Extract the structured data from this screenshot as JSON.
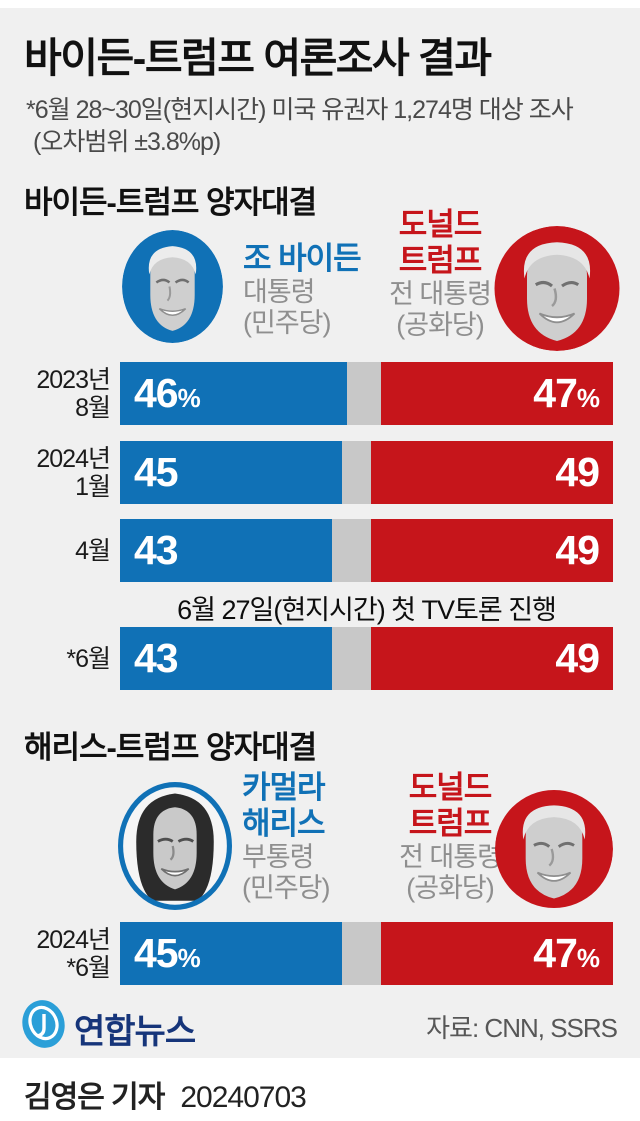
{
  "header": {
    "title": "바이든-트럼프 여론조사 결과",
    "subtitle_lines": [
      "*6월 28~30일(현지시간) 미국 유권자 1,274명 대상 조사",
      "(오차범위 ±3.8%p)"
    ]
  },
  "colors": {
    "dem_blue": "#1071b6",
    "rep_red": "#c6151b",
    "gap_gray": "#c8c8c8",
    "background_gray": "#f0f0f0",
    "logo_navy": "#16357a",
    "logo_blue": "#2b9fd8"
  },
  "sections": [
    {
      "header": "바이든-트럼프 양자대결",
      "left_candidate": {
        "name_lines": [
          "조 바이든"
        ],
        "role": "대통령",
        "party": "(민주당)",
        "photo_icon": "biden-portrait"
      },
      "right_candidate": {
        "name_lines": [
          "도널드",
          "트럼프"
        ],
        "role": "전 대통령",
        "party": "(공화당)",
        "photo_icon": "trump-portrait"
      },
      "rows": [
        {
          "label_lines": [
            "2023년",
            "8월"
          ],
          "left_value": 46,
          "right_value": 47,
          "left_suffix": "%",
          "right_suffix": "%"
        },
        {
          "label_lines": [
            "2024년",
            "1월"
          ],
          "left_value": 45,
          "right_value": 49,
          "left_suffix": "",
          "right_suffix": ""
        },
        {
          "label_lines": [
            "4월"
          ],
          "left_value": 43,
          "right_value": 49,
          "left_suffix": "",
          "right_suffix": ""
        },
        {
          "label_lines": [
            "*6월"
          ],
          "left_value": 43,
          "right_value": 49,
          "left_suffix": "",
          "right_suffix": ""
        }
      ],
      "annotation": "6월 27일(현지시간) 첫 TV토론 진행"
    },
    {
      "header": "해리스-트럼프 양자대결",
      "left_candidate": {
        "name_lines": [
          "카멀라",
          "해리스"
        ],
        "role": "부통령",
        "party": "(민주당)",
        "photo_icon": "harris-portrait"
      },
      "right_candidate": {
        "name_lines": [
          "도널드",
          "트럼프"
        ],
        "role": "전 대통령",
        "party": "(공화당)",
        "photo_icon": "trump-portrait"
      },
      "rows": [
        {
          "label_lines": [
            "2024년",
            "*6월"
          ],
          "left_value": 45,
          "right_value": 47,
          "left_suffix": "%",
          "right_suffix": "%"
        }
      ]
    }
  ],
  "footer_bar": {
    "logo_text": "연합뉴스",
    "source": "자료: CNN, SSRS"
  },
  "byline": {
    "reporter": "김영은 기자",
    "date": "20240703"
  },
  "chart_data": [
    {
      "type": "bar",
      "title": "바이든-트럼프 양자대결",
      "orientation": "horizontal-paired",
      "categories": [
        "2023년 8월",
        "2024년 1월",
        "4월",
        "*6월"
      ],
      "series": [
        {
          "name": "조 바이든 (민주당)",
          "color": "#1071b6",
          "values": [
            46,
            45,
            43,
            43
          ]
        },
        {
          "name": "도널드 트럼프 (공화당)",
          "color": "#c6151b",
          "values": [
            47,
            49,
            49,
            49
          ]
        }
      ],
      "unit": "%",
      "xlim": [
        0,
        100
      ],
      "annotation": "6월 27일(현지시간) 첫 TV토론 진행",
      "annotation_position": "between-row-3-and-4"
    },
    {
      "type": "bar",
      "title": "해리스-트럼프 양자대결",
      "orientation": "horizontal-paired",
      "categories": [
        "2024년 *6월"
      ],
      "series": [
        {
          "name": "카멀라 해리스 (민주당)",
          "color": "#1071b6",
          "values": [
            45
          ]
        },
        {
          "name": "도널드 트럼프 (공화당)",
          "color": "#c6151b",
          "values": [
            47
          ]
        }
      ],
      "unit": "%",
      "xlim": [
        0,
        100
      ]
    }
  ]
}
